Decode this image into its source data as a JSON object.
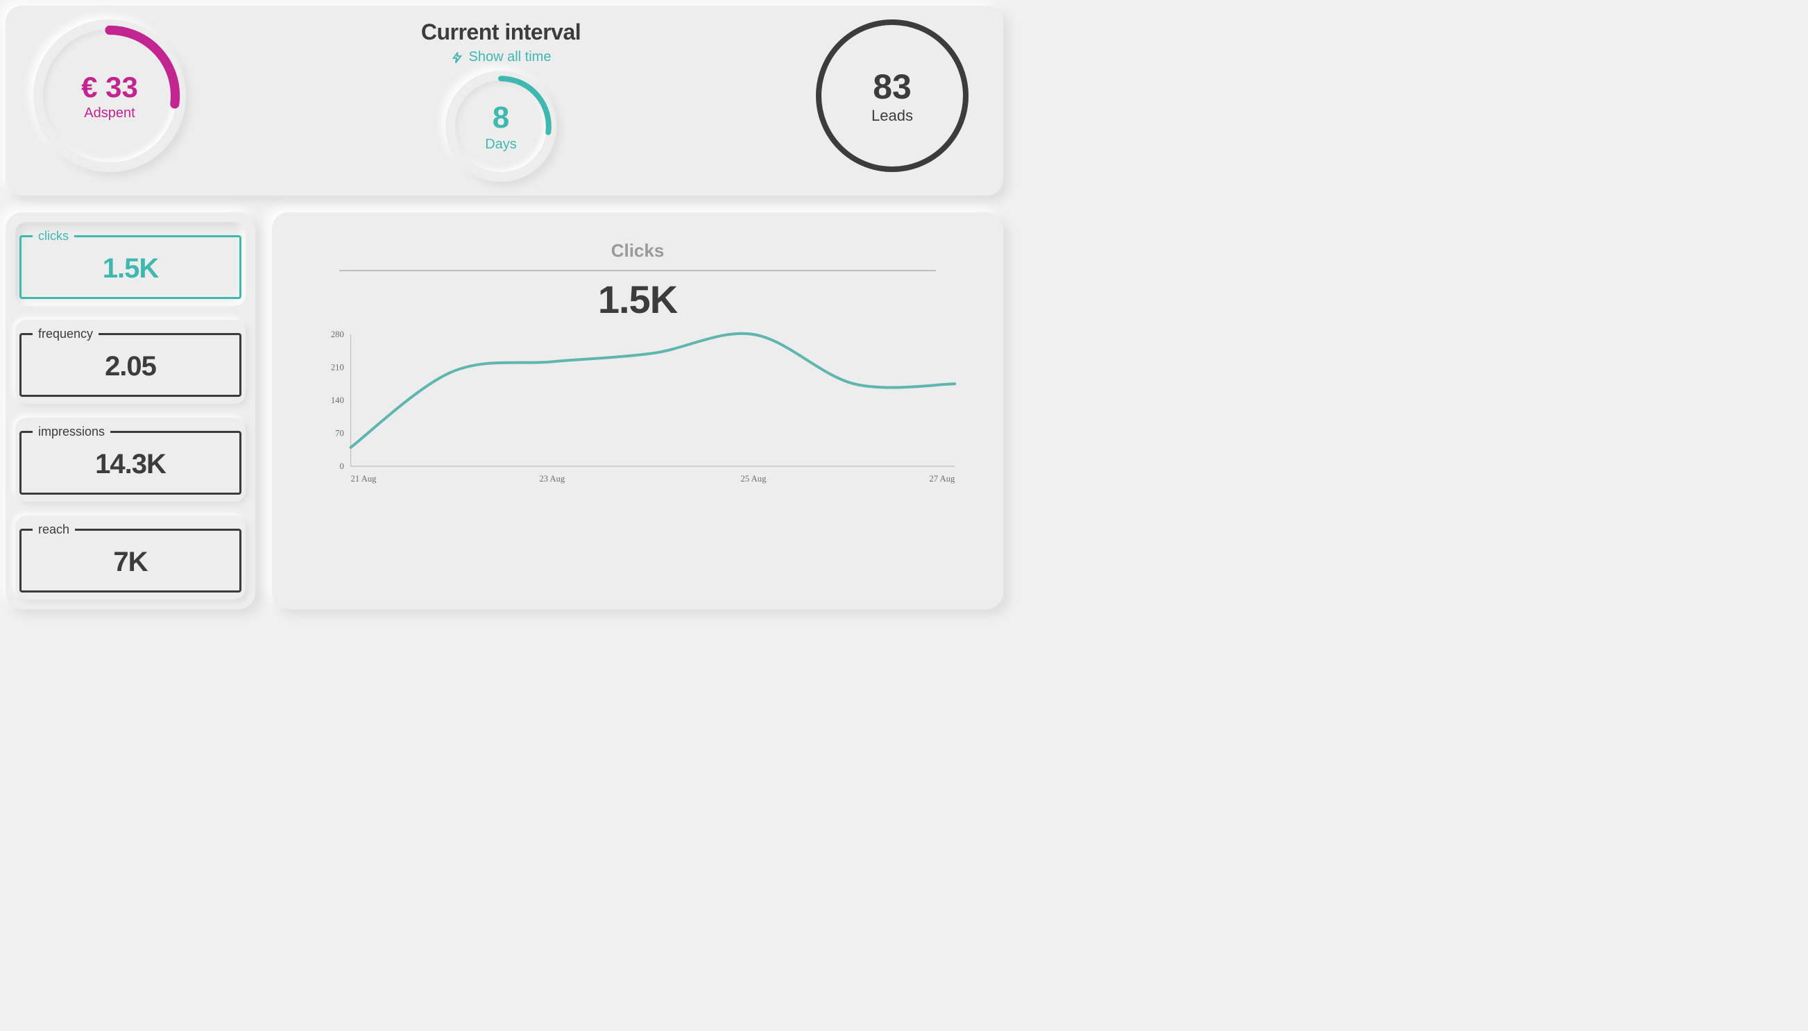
{
  "colors": {
    "bg": "#f0f0f0",
    "panel": "#ededed",
    "text": "#3c3c3c",
    "muted": "#9a9a9a",
    "teal": "#3fb8af",
    "magenta": "#c2258f",
    "axis": "#c0c0c0",
    "dark": "#3c3c3c"
  },
  "header": {
    "interval_title": "Current interval",
    "show_all_label": "Show all time",
    "adspent": {
      "value_display": "€ 33",
      "label": "Adspent",
      "color": "#c2258f",
      "progress_pct": 27
    },
    "days": {
      "value_display": "8",
      "label": "Days",
      "color": "#3fb8af",
      "progress_pct": 27
    },
    "leads": {
      "value_display": "83",
      "label": "Leads",
      "ring_color": "#3c3c3c",
      "ring_width": 8
    }
  },
  "metrics": [
    {
      "key": "clicks",
      "label": "clicks",
      "value": "1.5K",
      "color": "#3fb8af",
      "active": true
    },
    {
      "key": "frequency",
      "label": "frequency",
      "value": "2.05",
      "color": "#3c3c3c",
      "active": false
    },
    {
      "key": "impressions",
      "label": "impressions",
      "value": "14.3K",
      "color": "#3c3c3c",
      "active": false
    },
    {
      "key": "reach",
      "label": "reach",
      "value": "7K",
      "color": "#3c3c3c",
      "active": false
    }
  ],
  "chart": {
    "title": "Clicks",
    "big_value": "1.5K",
    "series_color": "#5fb6ae",
    "line_width": 4,
    "y": {
      "min": 0,
      "max": 280,
      "ticks": [
        0,
        70,
        140,
        210,
        280
      ]
    },
    "x_labels": [
      "21 Aug",
      "23 Aug",
      "25 Aug",
      "27 Aug"
    ],
    "data_x": [
      0,
      1,
      2,
      3,
      4,
      5,
      6
    ],
    "data_y": [
      40,
      200,
      222,
      240,
      280,
      175,
      175
    ],
    "x_tick_positions": [
      0,
      2,
      4,
      6
    ]
  }
}
